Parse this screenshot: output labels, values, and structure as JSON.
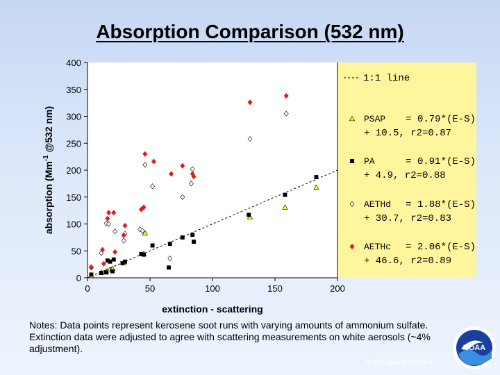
{
  "title": "Absorption Comparison (532 nm)",
  "notes": "Notes:  Data points represent kerosene soot runs with varying amounts of ammonium sulfate.  Extinction data were adjusted to agree with scattering measurements on white aerosols (~4% adjustment).",
  "credit": "P. Sheridan  8/27/2004",
  "logo_text": "NOAA",
  "colors": {
    "background": "#dbe6f8",
    "legend_bg": "#fff59d",
    "aethc": "#e8141e"
  },
  "chart_data": {
    "type": "scatter",
    "xlabel": "extinction - scattering",
    "ylabel_main": "absorption (Mm",
    "ylabel_sup": "-1",
    "ylabel_rest": " @532 nm)",
    "xlim": [
      0,
      200
    ],
    "ylim": [
      0,
      400
    ],
    "xticks": [
      "0",
      "50",
      "100",
      "150",
      "200"
    ],
    "yticks": [
      "0",
      "50",
      "100",
      "150",
      "200",
      "250",
      "300",
      "350",
      "400"
    ],
    "grid": false,
    "legend_placement": "right",
    "reference_line": {
      "name": "1:1 line",
      "x": [
        0,
        200
      ],
      "y": [
        0,
        200
      ]
    },
    "series": [
      {
        "name": "PSAP",
        "eq1": "= 0.79*(E-S)",
        "eq2": "+ 10.5, r2=0.87",
        "marker": "triangle",
        "color": "#ffff00",
        "x": [
          3,
          11,
          15,
          18,
          20,
          29,
          45,
          46,
          130,
          158,
          183
        ],
        "y": [
          4,
          10,
          12,
          15,
          17,
          28,
          45,
          83,
          113,
          131,
          168
        ]
      },
      {
        "name": "PA",
        "eq1": "= 0.91*(E-S)",
        "eq2": "+ 4.9, r2=0.88",
        "marker": "square",
        "color": "#000000",
        "x": [
          3,
          11,
          15,
          16,
          18,
          20,
          21,
          28,
          30,
          43,
          45,
          52,
          65,
          66,
          76,
          84,
          85,
          129,
          158,
          183
        ],
        "y": [
          6,
          9,
          10,
          32,
          30,
          12,
          34,
          27,
          30,
          44,
          43,
          60,
          19,
          63,
          75,
          80,
          67,
          117,
          154,
          187
        ]
      },
      {
        "name": "AETHd",
        "eq1": "= 1.88*(E-S)",
        "eq2": "+ 30.7, r2=0.83",
        "marker": "diamond",
        "color": "#ffffff",
        "x": [
          3,
          11,
          15,
          17,
          22,
          29,
          30,
          42,
          44,
          46,
          52,
          66,
          76,
          83,
          84,
          130,
          159
        ],
        "y": [
          19,
          46,
          101,
          100,
          86,
          69,
          82,
          90,
          87,
          210,
          170,
          36,
          150,
          175,
          202,
          258,
          305
        ]
      },
      {
        "name": "AETHc",
        "eq1": "= 2.06*(E-S)",
        "eq2": "+ 46.6, r2=0.89",
        "marker": "diamond",
        "color": "#e8141e",
        "x": [
          3,
          12,
          13,
          16,
          17,
          21,
          22,
          29,
          30,
          43,
          45,
          46,
          53,
          67,
          76,
          84,
          85,
          130,
          159
        ],
        "y": [
          20,
          52,
          26,
          110,
          121,
          121,
          48,
          79,
          97,
          127,
          131,
          230,
          216,
          193,
          208,
          193,
          188,
          326,
          338
        ]
      }
    ]
  }
}
